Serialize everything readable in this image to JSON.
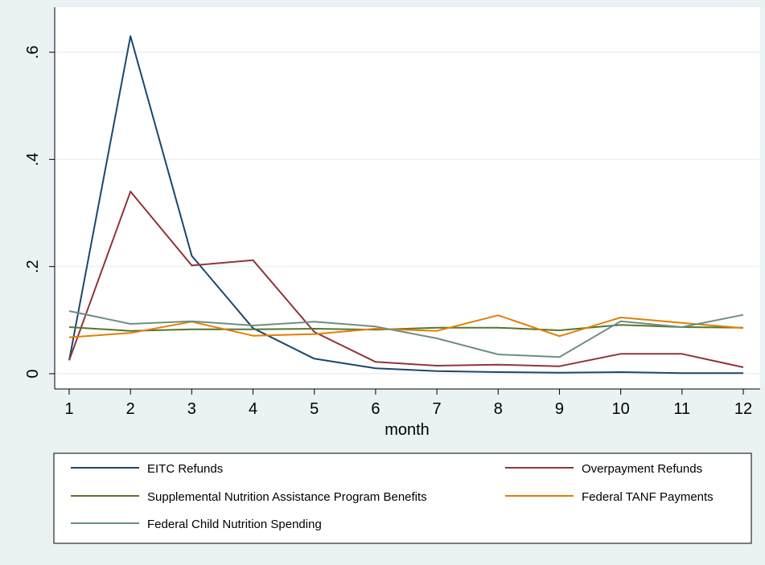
{
  "chart_data": {
    "type": "line",
    "xlabel": "month",
    "ylabel": "",
    "x": [
      1,
      2,
      3,
      4,
      5,
      6,
      7,
      8,
      9,
      10,
      11,
      12
    ],
    "xlim": [
      1,
      12
    ],
    "ylim": [
      0,
      0.6
    ],
    "y_ticks": [
      0,
      0.2,
      0.4,
      0.6
    ],
    "y_tick_labels": [
      "0",
      ".2",
      ".4",
      ".6"
    ],
    "grid": "horizontal",
    "legend_position": "bottom",
    "series": [
      {
        "name": "EITC Refunds",
        "color": "#1a476f",
        "values": [
          0.025,
          0.63,
          0.22,
          0.085,
          0.028,
          0.01,
          0.005,
          0.003,
          0.002,
          0.003,
          0.001,
          0.001
        ]
      },
      {
        "name": "Overpayment Refunds",
        "color": "#90353b",
        "values": [
          0.025,
          0.34,
          0.202,
          0.212,
          0.078,
          0.022,
          0.015,
          0.017,
          0.014,
          0.037,
          0.037,
          0.012
        ]
      },
      {
        "name": "Supplemental Nutrition Assistance Program Benefits",
        "color": "#55752f",
        "values": [
          0.087,
          0.08,
          0.083,
          0.083,
          0.084,
          0.082,
          0.086,
          0.086,
          0.081,
          0.091,
          0.087,
          0.086
        ]
      },
      {
        "name": "Federal TANF Payments",
        "color": "#e37e00",
        "values": [
          0.068,
          0.076,
          0.097,
          0.071,
          0.074,
          0.084,
          0.08,
          0.109,
          0.07,
          0.105,
          0.095,
          0.085
        ]
      },
      {
        "name": "Federal Child Nutrition Spending",
        "color": "#6e8e84",
        "values": [
          0.117,
          0.093,
          0.098,
          0.09,
          0.097,
          0.088,
          0.066,
          0.036,
          0.031,
          0.098,
          0.087,
          0.11
        ]
      }
    ]
  }
}
